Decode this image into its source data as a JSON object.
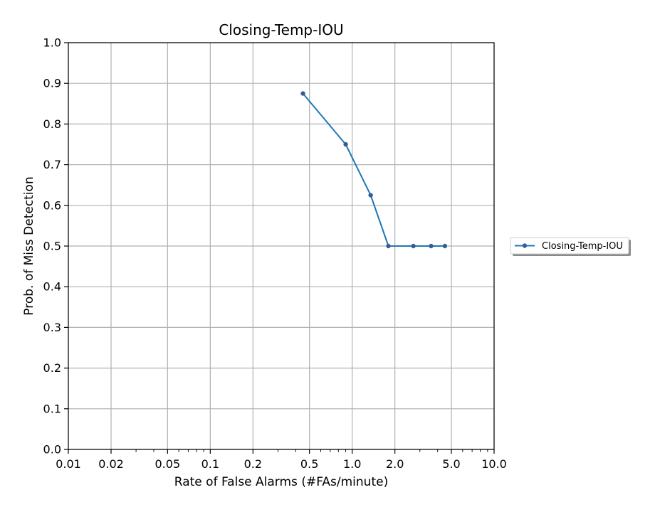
{
  "chart_data": {
    "type": "line",
    "title": "Closing-Temp-IOU",
    "xlabel": "Rate of False Alarms (#FAs/minute)",
    "ylabel": "Prob. of Miss Detection",
    "xscale": "log",
    "xlim": [
      0.01,
      10.0
    ],
    "ylim": [
      0.0,
      1.0
    ],
    "xticks": [
      0.01,
      0.02,
      0.05,
      0.1,
      0.2,
      0.5,
      1.0,
      2.0,
      5.0,
      10.0
    ],
    "xtick_labels": [
      "0.01",
      "0.02",
      "0.05",
      "0.1",
      "0.2",
      "0.5",
      "1.0",
      "2.0",
      "5.0",
      "10.0"
    ],
    "yticks": [
      0.0,
      0.1,
      0.2,
      0.3,
      0.4,
      0.5,
      0.6,
      0.7,
      0.8,
      0.9,
      1.0
    ],
    "ytick_labels": [
      "0.0",
      "0.1",
      "0.2",
      "0.3",
      "0.4",
      "0.5",
      "0.6",
      "0.7",
      "0.8",
      "0.9",
      "1.0"
    ],
    "grid": true,
    "legend_position": "outside-right",
    "series": [
      {
        "name": "Closing-Temp-IOU",
        "color": "#1f77b4",
        "marker_color": "#4b4f8a",
        "x": [
          0.45,
          0.9,
          1.35,
          1.8,
          2.7,
          3.6,
          4.5
        ],
        "y": [
          0.875,
          0.75,
          0.625,
          0.5,
          0.5,
          0.5,
          0.5
        ]
      }
    ]
  }
}
